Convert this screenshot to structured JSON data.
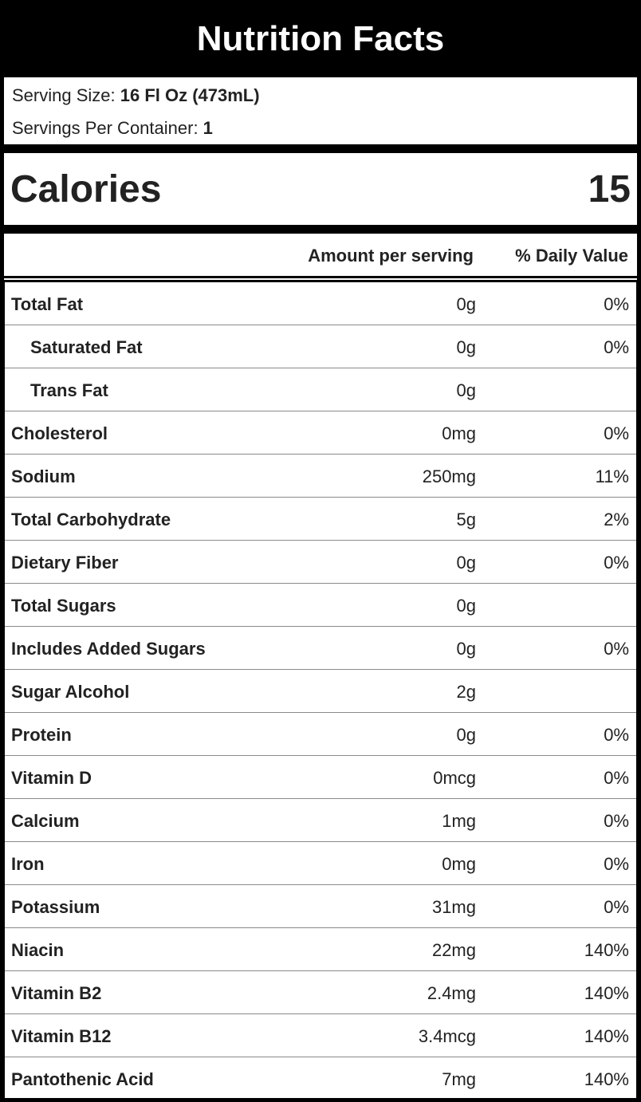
{
  "title": "Nutrition Facts",
  "serving": {
    "size_label": "Serving Size: ",
    "size_value": "16 Fl Oz (473mL)",
    "per_container_label": "Servings Per Container: ",
    "per_container_value": "1"
  },
  "calories": {
    "label": "Calories",
    "value": "15"
  },
  "columns": {
    "amount": "Amount per serving",
    "daily_value": "% Daily Value"
  },
  "nutrients": [
    {
      "name": "Total Fat",
      "amount": "0g",
      "dv": "0%",
      "indent": false
    },
    {
      "name": "Saturated Fat",
      "amount": "0g",
      "dv": "0%",
      "indent": true
    },
    {
      "name": "Trans Fat",
      "amount": "0g",
      "dv": "",
      "indent": true
    },
    {
      "name": "Cholesterol",
      "amount": "0mg",
      "dv": "0%",
      "indent": false
    },
    {
      "name": "Sodium",
      "amount": "250mg",
      "dv": "11%",
      "indent": false
    },
    {
      "name": "Total Carbohydrate",
      "amount": "5g",
      "dv": "2%",
      "indent": false
    },
    {
      "name": "Dietary Fiber",
      "amount": "0g",
      "dv": "0%",
      "indent": false
    },
    {
      "name": "Total Sugars",
      "amount": "0g",
      "dv": "",
      "indent": false
    },
    {
      "name": "Includes Added Sugars",
      "amount": "0g",
      "dv": "0%",
      "indent": false
    },
    {
      "name": "Sugar Alcohol",
      "amount": "2g",
      "dv": "",
      "indent": false
    },
    {
      "name": "Protein",
      "amount": "0g",
      "dv": "0%",
      "indent": false
    },
    {
      "name": "Vitamin D",
      "amount": "0mcg",
      "dv": "0%",
      "indent": false
    },
    {
      "name": "Calcium",
      "amount": "1mg",
      "dv": "0%",
      "indent": false
    },
    {
      "name": "Iron",
      "amount": "0mg",
      "dv": "0%",
      "indent": false
    },
    {
      "name": "Potassium",
      "amount": "31mg",
      "dv": "0%",
      "indent": false
    },
    {
      "name": "Niacin",
      "amount": "22mg",
      "dv": "140%",
      "indent": false
    },
    {
      "name": "Vitamin B2",
      "amount": "2.4mg",
      "dv": "140%",
      "indent": false
    },
    {
      "name": "Vitamin B12",
      "amount": "3.4mcg",
      "dv": "140%",
      "indent": false
    },
    {
      "name": "Pantothenic Acid",
      "amount": "7mg",
      "dv": "140%",
      "indent": false
    }
  ]
}
